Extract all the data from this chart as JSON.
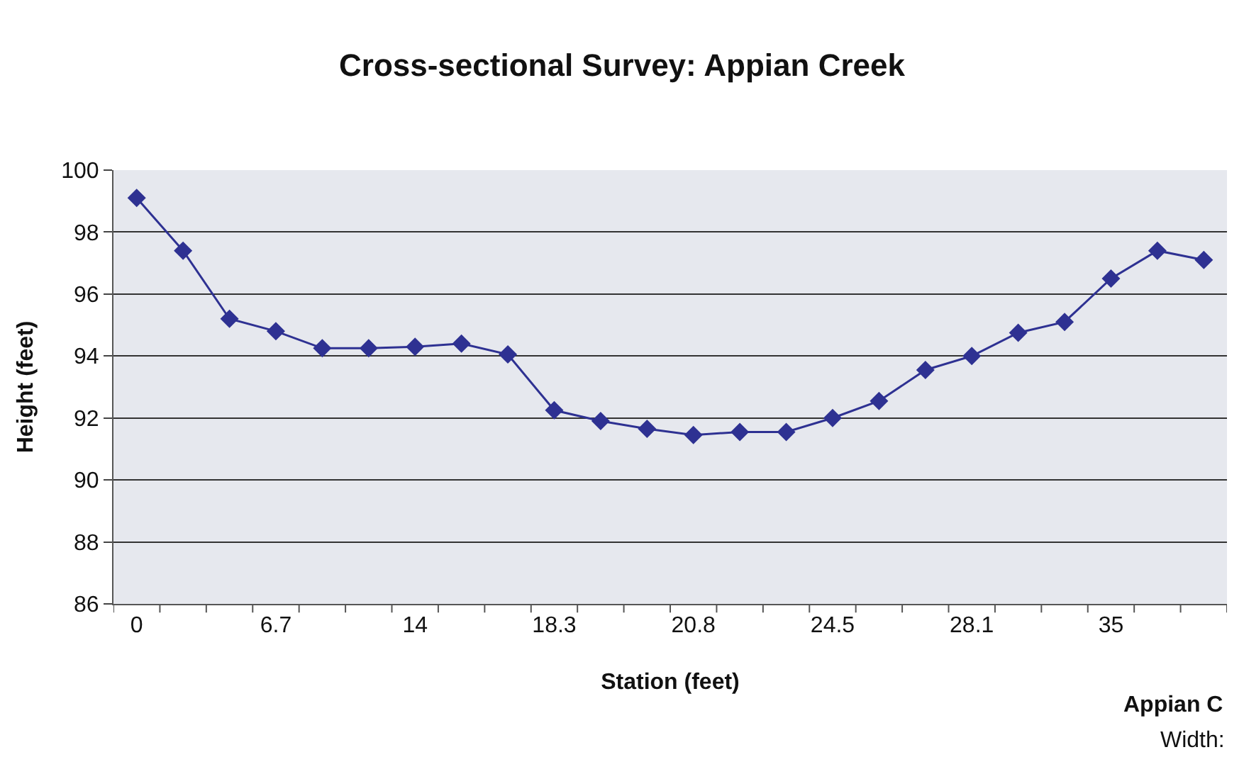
{
  "chart_data": {
    "type": "line",
    "title": "Cross-sectional Survey: Appian Creek",
    "xlabel": "Station (feet)",
    "ylabel": "Height (feet)",
    "categories": [
      "0",
      null,
      null,
      "6.7",
      null,
      null,
      "14",
      null,
      null,
      "18.3",
      null,
      null,
      "20.8",
      null,
      null,
      "24.5",
      null,
      null,
      "28.1",
      null,
      null,
      "35",
      null,
      null
    ],
    "series": [
      {
        "color": "#2e3192",
        "values": [
          99.1,
          97.4,
          95.2,
          94.8,
          94.25,
          94.25,
          94.3,
          94.4,
          94.05,
          92.25,
          91.9,
          91.65,
          91.45,
          91.55,
          91.55,
          92.0,
          92.55,
          93.55,
          94.0,
          94.75,
          95.1,
          96.5,
          97.4,
          97.1
        ]
      }
    ],
    "ylim": [
      86,
      100
    ],
    "yticks": [
      86,
      88,
      90,
      92,
      94,
      96,
      98,
      100
    ],
    "grid": "y",
    "marker": "diamond",
    "line_style": "solid",
    "annotations": [
      "Appian C",
      "Width:"
    ]
  }
}
